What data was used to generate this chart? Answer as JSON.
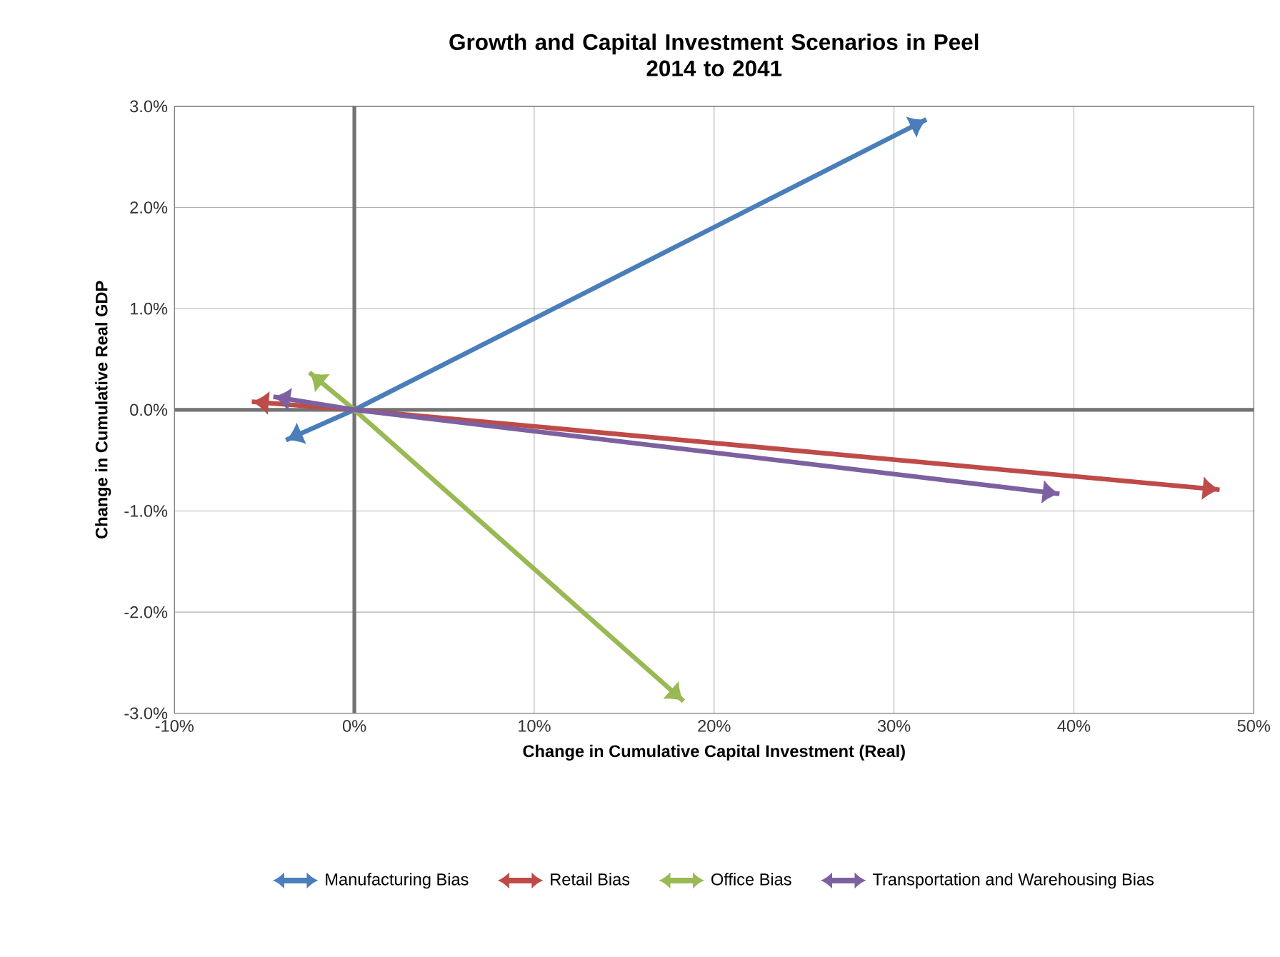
{
  "chart_data": {
    "type": "line",
    "title": "Growth and Capital Investment Scenarios in Peel\n2014 to 2041",
    "xlabel": "Change in Cumulative Capital Investment (Real)",
    "ylabel": "Change in Cumulative Real GDP",
    "series": [
      {
        "name": "Manufacturing Bias",
        "color": "#4a7ebb",
        "x": [
          -3.8,
          0,
          31.8
        ],
        "values": [
          -0.3,
          0,
          2.87
        ]
      },
      {
        "name": "Retail Bias",
        "color": "#be4b48",
        "x": [
          -5.7,
          0,
          48.1
        ],
        "values": [
          0.08,
          0,
          -0.79
        ]
      },
      {
        "name": "Office Bias",
        "color": "#98b954",
        "x": [
          -2.5,
          0,
          18.3
        ],
        "values": [
          0.37,
          0,
          -2.88
        ]
      },
      {
        "name": "Transportation and Warehousing Bias",
        "color": "#7d60a0",
        "x": [
          -4.5,
          0,
          39.2
        ],
        "values": [
          0.13,
          0,
          -0.83
        ]
      }
    ],
    "xlim": [
      -10,
      50
    ],
    "ylim": [
      -3,
      3
    ],
    "xticks": [
      {
        "value": -10,
        "label": "-10%"
      },
      {
        "value": 0,
        "label": "0%"
      },
      {
        "value": 10,
        "label": "10%"
      },
      {
        "value": 20,
        "label": "20%"
      },
      {
        "value": 30,
        "label": "30%"
      },
      {
        "value": 40,
        "label": "40%"
      },
      {
        "value": 50,
        "label": "50%"
      }
    ],
    "yticks": [
      {
        "value": -3,
        "label": "-3.0%"
      },
      {
        "value": -2,
        "label": "-2.0%"
      },
      {
        "value": -1,
        "label": "-1.0%"
      },
      {
        "value": 0,
        "label": "0.0%"
      },
      {
        "value": 1,
        "label": "1.0%"
      },
      {
        "value": 2,
        "label": "2.0%"
      },
      {
        "value": 3,
        "label": "3.0%"
      }
    ],
    "grid": true,
    "legend": "bottom",
    "line_style": "solid"
  }
}
